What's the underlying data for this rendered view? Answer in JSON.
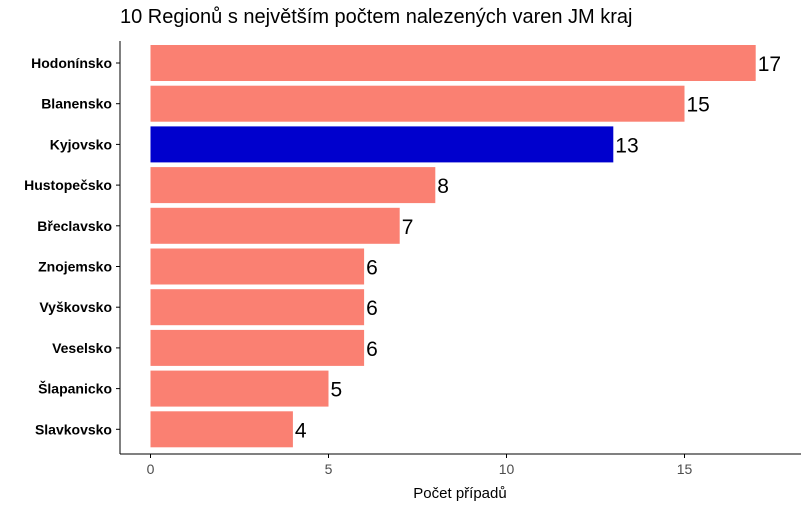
{
  "chart_data": {
    "type": "bar",
    "orientation": "horizontal",
    "title": "10 Regionů s největším počtem nalezených varen JM kraj",
    "xlabel": "Počet případů",
    "ylabel": "",
    "xlim": [
      0,
      18
    ],
    "x_ticks": [
      0,
      5,
      10,
      15
    ],
    "categories": [
      "Hodonínsko",
      "Blanensko",
      "Kyjovsko",
      "Hustopečsko",
      "Břeclavsko",
      "Znojemsko",
      "Vyškovsko",
      "Veselsko",
      "Šlapanicko",
      "Slavkovsko"
    ],
    "values": [
      17,
      15,
      13,
      8,
      7,
      6,
      6,
      6,
      5,
      4
    ],
    "highlighted_category": "Kyjovsko",
    "colors": {
      "default": "#FA8072",
      "highlight": "#0000CD"
    },
    "grid": false,
    "legend": "none"
  }
}
